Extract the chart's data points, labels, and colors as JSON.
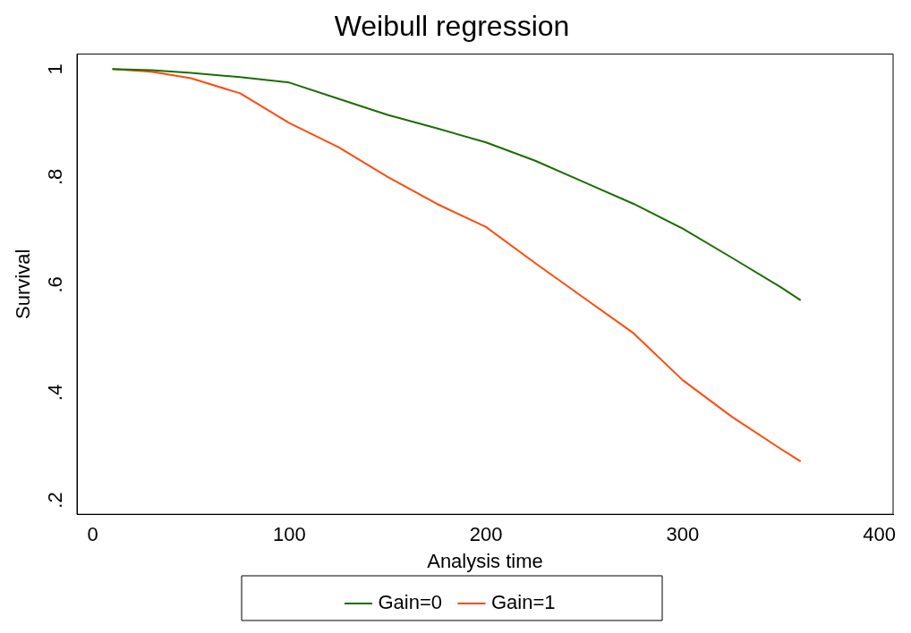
{
  "chart_data": {
    "type": "line",
    "title": "Weibull regression",
    "xlabel": "Analysis time",
    "ylabel": "Survival",
    "x": [
      10,
      30,
      50,
      75,
      100,
      125,
      150,
      175,
      200,
      225,
      250,
      275,
      300,
      325,
      350,
      360
    ],
    "series": [
      {
        "name": "Gain=0",
        "color": "#1a6e00",
        "values": [
          1.0,
          0.998,
          0.993,
          0.985,
          0.975,
          0.945,
          0.915,
          0.89,
          0.864,
          0.83,
          0.79,
          0.75,
          0.704,
          0.65,
          0.595,
          0.571
        ]
      },
      {
        "name": "Gain=1",
        "color": "#ff4a0a",
        "values": [
          1.0,
          0.995,
          0.983,
          0.955,
          0.9,
          0.855,
          0.8,
          0.75,
          0.707,
          0.64,
          0.575,
          0.51,
          0.423,
          0.355,
          0.295,
          0.272
        ]
      }
    ],
    "xlim": [
      -8,
      407
    ],
    "xticks": [
      0,
      100,
      200,
      300,
      400
    ],
    "ylim": [
      0.174,
      1.028
    ],
    "yticks": [
      {
        "value": 0.2,
        "label": ".2"
      },
      {
        "value": 0.4,
        "label": ".4"
      },
      {
        "value": 0.6,
        "label": ".6"
      },
      {
        "value": 0.8,
        "label": ".8"
      },
      1
    ],
    "grid": false,
    "legend": "bottom",
    "marker": "none",
    "line_style": "solid"
  }
}
